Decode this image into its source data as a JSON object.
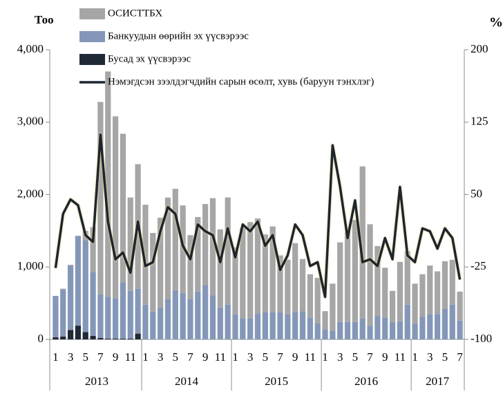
{
  "chart_data": {
    "type": "bar",
    "y_unit_label": "Тоо",
    "y2_unit_label": "%",
    "categories": [
      "1",
      null,
      "3",
      null,
      "5",
      null,
      "7",
      null,
      "9",
      null,
      "11",
      null,
      "1",
      null,
      "3",
      null,
      "5",
      null,
      "7",
      null,
      "9",
      null,
      "11",
      null,
      "1",
      null,
      "3",
      null,
      "5",
      null,
      "7",
      null,
      "9",
      null,
      "11",
      null,
      "1",
      null,
      "3",
      null,
      "5",
      null,
      "7",
      null,
      "9",
      null,
      "11",
      null,
      "1",
      null,
      "3",
      null,
      "5",
      null,
      "7"
    ],
    "years": [
      "2013",
      "2014",
      "2015",
      "2016",
      "2017"
    ],
    "series": [
      {
        "name": "Бусад эх үүсвэрээс",
        "color": "#1f2a36",
        "values": [
          30,
          40,
          130,
          190,
          100,
          50,
          20,
          10,
          10,
          10,
          10,
          80,
          0,
          0,
          0,
          0,
          0,
          0,
          0,
          0,
          0,
          0,
          0,
          0,
          0,
          0,
          0,
          0,
          0,
          0,
          0,
          0,
          0,
          0,
          0,
          0,
          0,
          0,
          0,
          0,
          0,
          0,
          0,
          0,
          0,
          0,
          0,
          0,
          0,
          0,
          0,
          0,
          0,
          0,
          0
        ]
      },
      {
        "name": "Банкуудын өөрийн эх үүсвэрээс",
        "color": "#8497b8",
        "values": [
          570,
          650,
          890,
          1240,
          1270,
          880,
          600,
          580,
          560,
          780,
          660,
          620,
          480,
          380,
          440,
          560,
          680,
          640,
          560,
          660,
          750,
          610,
          440,
          480,
          350,
          290,
          290,
          360,
          380,
          380,
          380,
          350,
          380,
          390,
          300,
          220,
          140,
          120,
          240,
          240,
          240,
          290,
          190,
          320,
          300,
          240,
          250,
          480,
          220,
          310,
          350,
          350,
          420,
          480,
          260
        ]
      },
      {
        "name": "ОСИСТТБХ",
        "color": "#a6a6a6",
        "values": [
          0,
          10,
          10,
          0,
          130,
          620,
          2660,
          3110,
          2510,
          2050,
          1290,
          1720,
          1380,
          1090,
          1240,
          1400,
          1400,
          1210,
          880,
          1030,
          1120,
          1340,
          1080,
          1480,
          920,
          1250,
          1330,
          1310,
          1070,
          1180,
          780,
          750,
          950,
          720,
          600,
          630,
          250,
          650,
          1100,
          1240,
          1410,
          2100,
          1400,
          970,
          690,
          430,
          820,
          740,
          550,
          590,
          670,
          590,
          660,
          620,
          400
        ]
      },
      {
        "name": "Нэмэгдсэн зээлдэгчдийн сарын өсөлт, хувь (баруун тэнхлэг)",
        "color": "#1c2530",
        "type": "line",
        "axis": "y2",
        "values": [
          -26,
          30,
          45,
          39,
          8,
          1,
          112,
          22,
          -17,
          -10,
          -31,
          22,
          -24,
          -20,
          12,
          37,
          30,
          -3,
          -17,
          19,
          12,
          8,
          -20,
          15,
          -15,
          19,
          12,
          22,
          -3,
          8,
          -28,
          -13,
          19,
          8,
          -24,
          -20,
          -56,
          101,
          58,
          5,
          44,
          -20,
          -17,
          -24,
          5,
          -17,
          58,
          -13,
          -20,
          15,
          12,
          -6,
          15,
          5,
          -38
        ]
      }
    ],
    "legend_order": [
      2,
      1,
      0,
      3
    ],
    "ylim": [
      0,
      4000
    ],
    "yticks": [
      0,
      {
        "value": 1000,
        "label": "1,000"
      },
      {
        "value": 2000,
        "label": "2,000"
      },
      {
        "value": 3000,
        "label": "3,000"
      },
      {
        "value": 4000,
        "label": "4,000"
      }
    ],
    "y2lim": [
      -100,
      200
    ],
    "y2ticks": [
      -100,
      -25,
      50,
      125,
      200
    ]
  }
}
